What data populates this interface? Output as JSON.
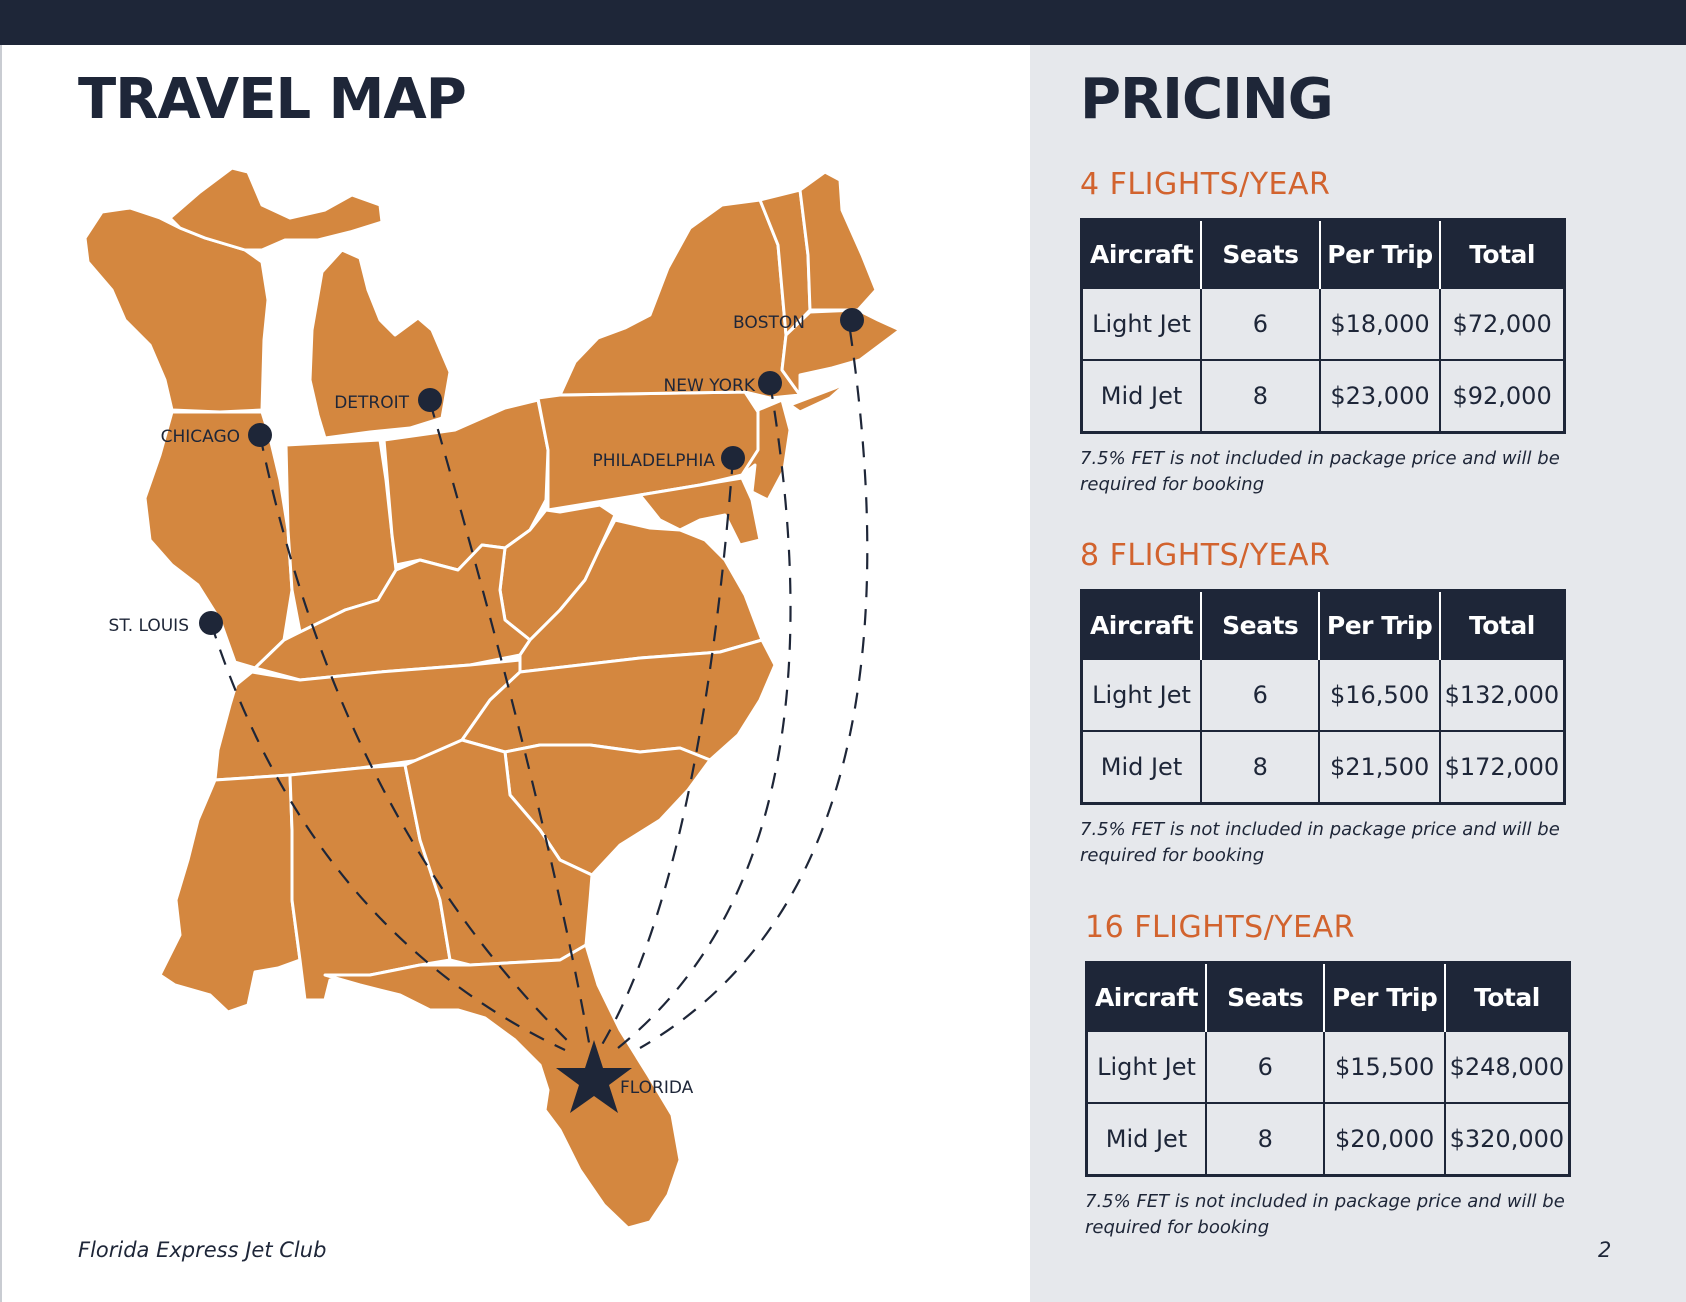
{
  "map": {
    "title": "TRAVEL MAP",
    "colors": {
      "land": "#d4873f",
      "border": "#ffffff",
      "route": "#1e2638",
      "marker": "#1e2638"
    },
    "cities": [
      {
        "name": "BOSTON",
        "icon": "dot-marker"
      },
      {
        "name": "NEW YORK",
        "icon": "dot-marker"
      },
      {
        "name": "DETROIT",
        "icon": "dot-marker"
      },
      {
        "name": "CHICAGO",
        "icon": "dot-marker"
      },
      {
        "name": "PHILADELPHIA",
        "icon": "dot-marker"
      },
      {
        "name": "ST. LOUIS",
        "icon": "dot-marker"
      }
    ],
    "destination": {
      "name": "FLORIDA",
      "icon": "star-marker"
    }
  },
  "pricing": {
    "title": "PRICING",
    "headers": [
      "Aircraft",
      "Seats",
      "Per Trip",
      "Total"
    ],
    "packages": [
      {
        "label": "4 FLIGHTS/YEAR",
        "rows": [
          [
            "Light Jet",
            "6",
            "$18,000",
            "$72,000"
          ],
          [
            "Mid Jet",
            "8",
            "$23,000",
            "$92,000"
          ]
        ],
        "note": "7.5% FET is not included in package price and will be required for booking"
      },
      {
        "label": "8 FLIGHTS/YEAR",
        "rows": [
          [
            "Light Jet",
            "6",
            "$16,500",
            "$132,000"
          ],
          [
            "Mid Jet",
            "8",
            "$21,500",
            "$172,000"
          ]
        ],
        "note": "7.5% FET is not included in package price and will be required for booking"
      },
      {
        "label": "16 FLIGHTS/YEAR",
        "rows": [
          [
            "Light Jet",
            "6",
            "$15,500",
            "$248,000"
          ],
          [
            "Mid Jet",
            "8",
            "$20,000",
            "$320,000"
          ]
        ],
        "note": "7.5% FET is not included in package price and will be required for booking"
      }
    ]
  },
  "footer": {
    "brand": "Florida Express Jet Club",
    "page_number": "2"
  }
}
